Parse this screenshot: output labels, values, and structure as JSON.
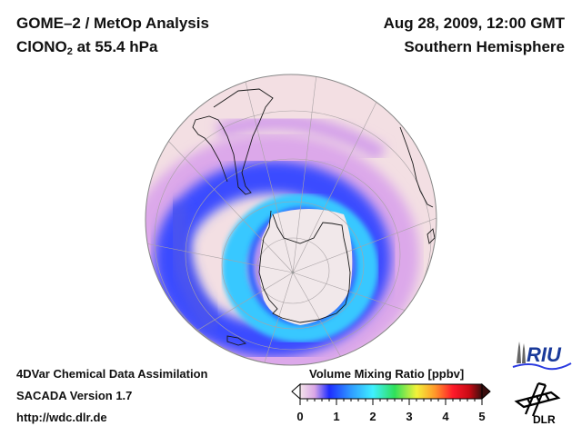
{
  "header": {
    "title_line1": "GOME–2 / MetOp Analysis",
    "species_main": "ClONO",
    "species_sub": "2",
    "species_rest": " at 55.4 hPa",
    "date": "Aug 28, 2009, 12:00 GMT",
    "hemisphere": "Southern Hemisphere"
  },
  "footer": {
    "line1": "4DVar Chemical Data Assimilation",
    "line2": "SACADA Version 1.7",
    "line3": "http://wdc.dlr.de"
  },
  "colorbar": {
    "title": "Volume Mixing Ratio [ppbv]",
    "ticks": [
      "0",
      "1",
      "2",
      "3",
      "4",
      "5"
    ],
    "range": [
      0,
      5
    ],
    "colors": [
      "#f4e4ea",
      "#d9a6e6",
      "#1e2cff",
      "#2f9bff",
      "#3ff0ff",
      "#2fe05a",
      "#f2f23a",
      "#ff9a2a",
      "#ff1a2a",
      "#c80a14",
      "#3a0e0e"
    ]
  },
  "map": {
    "projection": "orthographic",
    "center": "South Pole region",
    "background_color": "#f3dfe3",
    "polar_low_color": "#f1e9ea",
    "ring_colors": [
      "#d9a0e8",
      "#2d3cff",
      "#2f8cff",
      "#3fd8ff"
    ]
  },
  "logos": {
    "riu_text": "RIU",
    "dlr_text": "DLR"
  }
}
